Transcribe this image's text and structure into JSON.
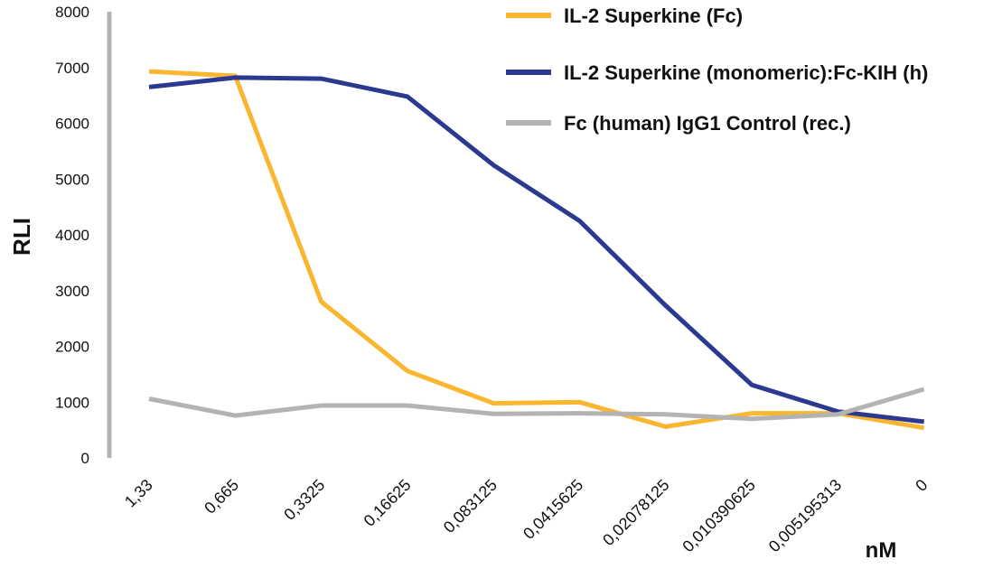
{
  "chart_data": {
    "type": "line",
    "title": "",
    "xlabel": "nM",
    "ylabel": "RLI",
    "categories": [
      "1,33",
      "0,665",
      "0,3325",
      "0,16625",
      "0,083125",
      "0,0415625",
      "0,02078125",
      "0,010390625",
      "0,005195313",
      "0"
    ],
    "yticks": [
      "0",
      "1000",
      "2000",
      "3000",
      "4000",
      "5000",
      "6000",
      "7000",
      "8000"
    ],
    "ylim": [
      0,
      8000
    ],
    "grid": false,
    "legend_position": "top-right",
    "series": [
      {
        "name": "IL-2 Superkine (Fc)",
        "color": "#F9B62E",
        "values": [
          6930,
          6850,
          2800,
          1560,
          980,
          1000,
          560,
          800,
          800,
          540
        ]
      },
      {
        "name": "IL-2 Superkine (monomeric):Fc-KIH (h)",
        "color": "#2B3990",
        "values": [
          6650,
          6820,
          6800,
          6480,
          5250,
          4250,
          2730,
          1310,
          830,
          650
        ]
      },
      {
        "name": "Fc (human) IgG1 Control (rec.)",
        "color": "#B3B3B3",
        "values": [
          1060,
          760,
          940,
          940,
          790,
          800,
          780,
          700,
          780,
          1230
        ]
      }
    ]
  }
}
